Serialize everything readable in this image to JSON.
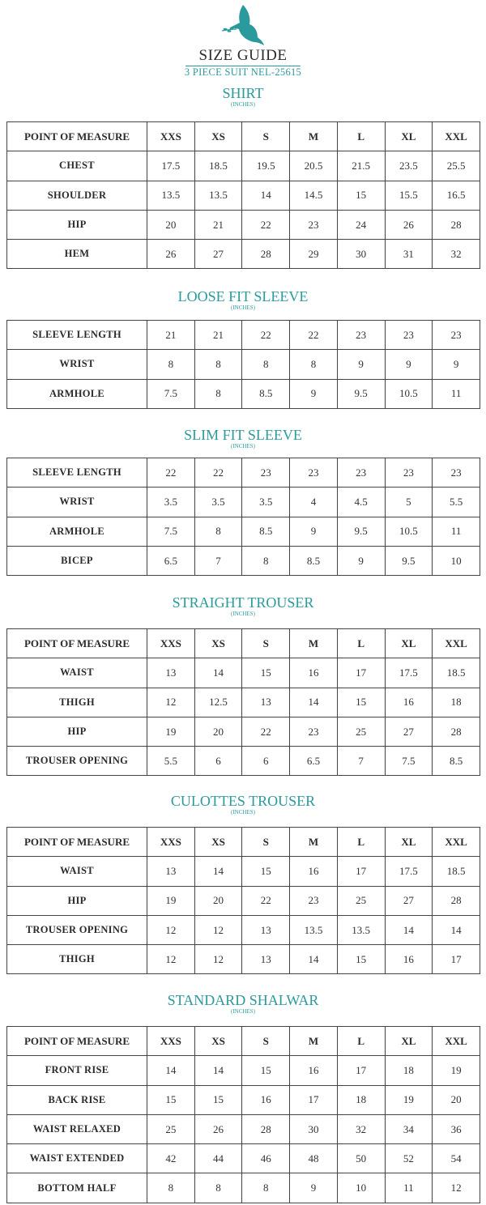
{
  "header": {
    "logo": "dove-with-olive-branch",
    "title": "SIZE GUIDE",
    "subtitle": "3 PIECE SUIT NEL-25615"
  },
  "colors": {
    "accent": "#2a9a9c",
    "text": "#2b2b2b",
    "border": "#444444"
  },
  "sizes": [
    "XXS",
    "XS",
    "S",
    "M",
    "L",
    "XL",
    "XXL"
  ],
  "sections": [
    {
      "title": "SHIRT",
      "unit": "(INCHES)",
      "header_label": "POINT OF MEASURE",
      "rows": [
        {
          "label": "CHEST",
          "values": [
            "17.5",
            "18.5",
            "19.5",
            "20.5",
            "21.5",
            "23.5",
            "25.5"
          ]
        },
        {
          "label": "SHOULDER",
          "values": [
            "13.5",
            "13.5",
            "14",
            "14.5",
            "15",
            "15.5",
            "16.5"
          ]
        },
        {
          "label": "HIP",
          "values": [
            "20",
            "21",
            "22",
            "23",
            "24",
            "26",
            "28"
          ]
        },
        {
          "label": "HEM",
          "values": [
            "26",
            "27",
            "28",
            "29",
            "30",
            "31",
            "32"
          ]
        }
      ]
    },
    {
      "title": "LOOSE FIT SLEEVE",
      "unit": "(INCHES)",
      "rows": [
        {
          "label": "SLEEVE LENGTH",
          "values": [
            "21",
            "21",
            "22",
            "22",
            "23",
            "23",
            "23"
          ]
        },
        {
          "label": "WRIST",
          "values": [
            "8",
            "8",
            "8",
            "8",
            "9",
            "9",
            "9"
          ]
        },
        {
          "label": "ARMHOLE",
          "values": [
            "7.5",
            "8",
            "8.5",
            "9",
            "9.5",
            "10.5",
            "11"
          ]
        }
      ]
    },
    {
      "title": "SLIM FIT SLEEVE",
      "unit": "(INCHES)",
      "rows": [
        {
          "label": "SLEEVE LENGTH",
          "values": [
            "22",
            "22",
            "23",
            "23",
            "23",
            "23",
            "23"
          ]
        },
        {
          "label": "WRIST",
          "values": [
            "3.5",
            "3.5",
            "3.5",
            "4",
            "4.5",
            "5",
            "5.5"
          ]
        },
        {
          "label": "ARMHOLE",
          "values": [
            "7.5",
            "8",
            "8.5",
            "9",
            "9.5",
            "10.5",
            "11"
          ]
        },
        {
          "label": "BICEP",
          "values": [
            "6.5",
            "7",
            "8",
            "8.5",
            "9",
            "9.5",
            "10"
          ]
        }
      ]
    },
    {
      "title": "STRAIGHT TROUSER",
      "unit": "(INCHES)",
      "header_label": "POINT OF MEASURE",
      "rows": [
        {
          "label": "WAIST",
          "values": [
            "13",
            "14",
            "15",
            "16",
            "17",
            "17.5",
            "18.5"
          ]
        },
        {
          "label": "THIGH",
          "values": [
            "12",
            "12.5",
            "13",
            "14",
            "15",
            "16",
            "18"
          ]
        },
        {
          "label": "HIP",
          "values": [
            "19",
            "20",
            "22",
            "23",
            "25",
            "27",
            "28"
          ]
        },
        {
          "label": "TROUSER OPENING",
          "values": [
            "5.5",
            "6",
            "6",
            "6.5",
            "7",
            "7.5",
            "8.5"
          ]
        }
      ]
    },
    {
      "title": "CULOTTES TROUSER",
      "unit": "(INCHES)",
      "header_label": "POINT OF MEASURE",
      "rows": [
        {
          "label": "WAIST",
          "values": [
            "13",
            "14",
            "15",
            "16",
            "17",
            "17.5",
            "18.5"
          ]
        },
        {
          "label": "HIP",
          "values": [
            "19",
            "20",
            "22",
            "23",
            "25",
            "27",
            "28"
          ]
        },
        {
          "label": "TROUSER OPENING",
          "values": [
            "12",
            "12",
            "13",
            "13.5",
            "13.5",
            "14",
            "14"
          ]
        },
        {
          "label": "THIGH",
          "values": [
            "12",
            "12",
            "13",
            "14",
            "15",
            "16",
            "17"
          ]
        }
      ]
    },
    {
      "title": "STANDARD SHALWAR",
      "unit": "(INCHES)",
      "header_label": "POINT OF MEASURE",
      "rows": [
        {
          "label": "FRONT RISE",
          "values": [
            "14",
            "14",
            "15",
            "16",
            "17",
            "18",
            "19"
          ]
        },
        {
          "label": "BACK RISE",
          "values": [
            "15",
            "15",
            "16",
            "17",
            "18",
            "19",
            "20"
          ]
        },
        {
          "label": "WAIST RELAXED",
          "values": [
            "25",
            "26",
            "28",
            "30",
            "32",
            "34",
            "36"
          ]
        },
        {
          "label": "WAIST EXTENDED",
          "values": [
            "42",
            "44",
            "46",
            "48",
            "50",
            "52",
            "54"
          ]
        },
        {
          "label": "BOTTOM HALF",
          "values": [
            "8",
            "8",
            "8",
            "9",
            "10",
            "11",
            "12"
          ]
        }
      ]
    }
  ]
}
